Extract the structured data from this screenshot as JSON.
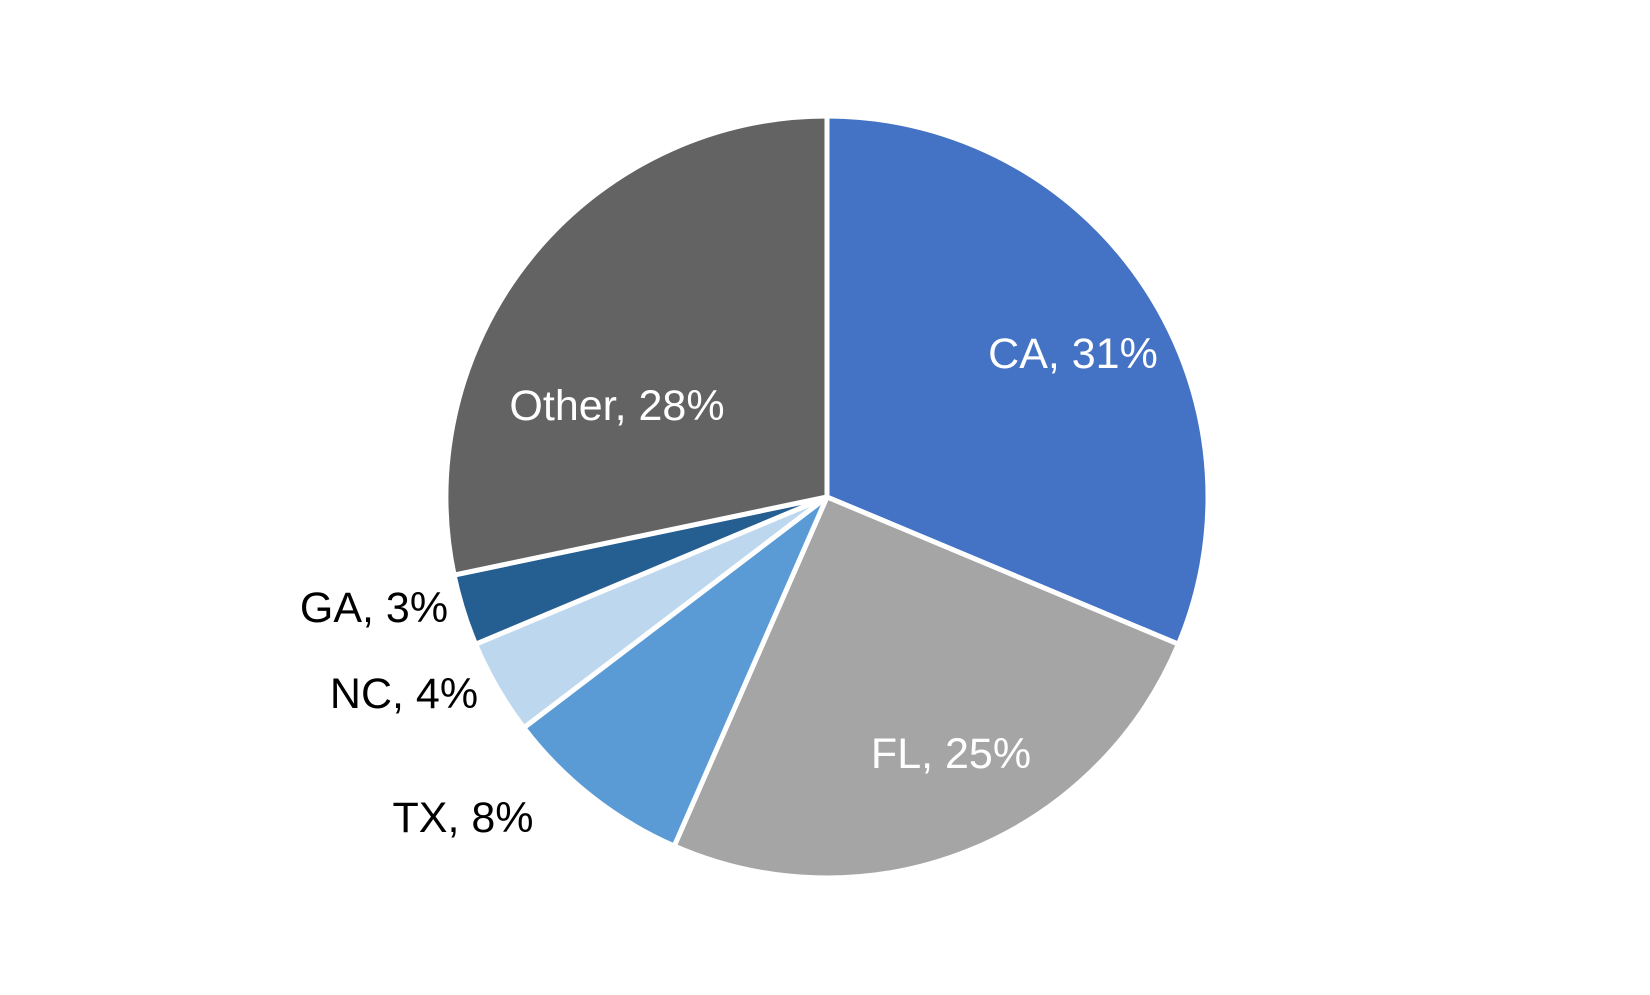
{
  "chart_data": {
    "type": "pie",
    "title": "",
    "slices": [
      {
        "label": "CA",
        "value": 31,
        "color": "#4472C4",
        "label_color": "#ffffff",
        "label_text": "CA, 31%"
      },
      {
        "label": "FL",
        "value": 25,
        "color": "#A5A5A5",
        "label_color": "#ffffff",
        "label_text": "FL, 25%"
      },
      {
        "label": "TX",
        "value": 8,
        "color": "#5B9BD5",
        "label_color": "#000000",
        "label_text": "TX, 8%"
      },
      {
        "label": "NC",
        "value": 4,
        "color": "#BDD7EE",
        "label_color": "#000000",
        "label_text": "NC, 4%"
      },
      {
        "label": "GA",
        "value": 3,
        "color": "#255E91",
        "label_color": "#000000",
        "label_text": "GA, 3%"
      },
      {
        "label": "Other",
        "value": 28,
        "color": "#636363",
        "label_color": "#ffffff",
        "label_text": "Other, 28%"
      }
    ],
    "start_angle": "12 o'clock",
    "direction": "clockwise",
    "legend": "none",
    "data_labels": "category name and percentage"
  }
}
